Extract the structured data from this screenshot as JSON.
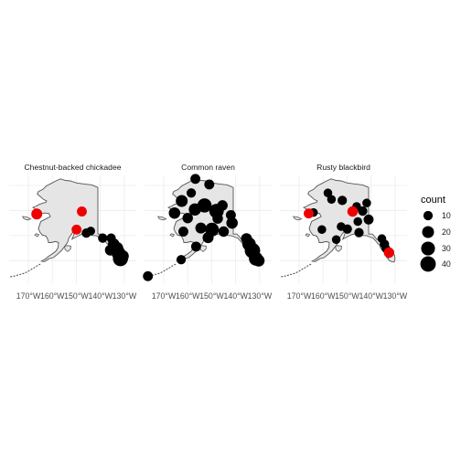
{
  "figure": {
    "facets": [
      {
        "title": "Chestnut-backed chickadee",
        "points": [
          {
            "lon": -166.5,
            "lat": 64.3,
            "count": 16,
            "highlight": true
          },
          {
            "lon": -147.7,
            "lat": 64.8,
            "count": 12,
            "highlight": true
          },
          {
            "lon": -149.9,
            "lat": 61.2,
            "count": 12,
            "highlight": true
          },
          {
            "lon": -135.5,
            "lat": 59.5,
            "count": 10,
            "highlight": false
          },
          {
            "lon": -134.4,
            "lat": 58.3,
            "count": 18,
            "highlight": false
          },
          {
            "lon": -133.0,
            "lat": 57.5,
            "count": 22,
            "highlight": false
          },
          {
            "lon": -132.4,
            "lat": 56.5,
            "count": 30,
            "highlight": false
          },
          {
            "lon": -131.6,
            "lat": 55.4,
            "count": 38,
            "highlight": false
          },
          {
            "lon": -130.6,
            "lat": 55.9,
            "count": 20,
            "highlight": false
          },
          {
            "lon": -135.8,
            "lat": 57.1,
            "count": 16,
            "highlight": false
          },
          {
            "lon": -139.0,
            "lat": 59.5,
            "count": 10,
            "highlight": false
          },
          {
            "lon": -145.8,
            "lat": 60.5,
            "count": 10,
            "highlight": false
          },
          {
            "lon": -144.0,
            "lat": 60.9,
            "count": 8,
            "highlight": false
          }
        ]
      },
      {
        "title": "Common raven",
        "points": [
          {
            "lon": -165.5,
            "lat": 64.5,
            "count": 18,
            "highlight": false
          },
          {
            "lon": -162.5,
            "lat": 66.9,
            "count": 20,
            "highlight": false
          },
          {
            "lon": -158.5,
            "lat": 68.5,
            "count": 10,
            "highlight": false
          },
          {
            "lon": -156.8,
            "lat": 71.3,
            "count": 12,
            "highlight": false
          },
          {
            "lon": -151.0,
            "lat": 70.2,
            "count": 12,
            "highlight": false
          },
          {
            "lon": -160.0,
            "lat": 63.5,
            "count": 14,
            "highlight": false
          },
          {
            "lon": -157.0,
            "lat": 65.2,
            "count": 22,
            "highlight": false
          },
          {
            "lon": -153.0,
            "lat": 66.0,
            "count": 32,
            "highlight": false
          },
          {
            "lon": -148.0,
            "lat": 64.9,
            "count": 34,
            "highlight": false
          },
          {
            "lon": -145.5,
            "lat": 66.0,
            "count": 14,
            "highlight": false
          },
          {
            "lon": -142.0,
            "lat": 64.1,
            "count": 12,
            "highlight": false
          },
          {
            "lon": -141.5,
            "lat": 62.5,
            "count": 18,
            "highlight": false
          },
          {
            "lon": -147.5,
            "lat": 63.4,
            "count": 14,
            "highlight": false
          },
          {
            "lon": -154.5,
            "lat": 61.5,
            "count": 16,
            "highlight": false
          },
          {
            "lon": -161.8,
            "lat": 60.8,
            "count": 12,
            "highlight": false
          },
          {
            "lon": -149.9,
            "lat": 61.2,
            "count": 30,
            "highlight": false
          },
          {
            "lon": -151.5,
            "lat": 59.6,
            "count": 16,
            "highlight": false
          },
          {
            "lon": -145.0,
            "lat": 60.8,
            "count": 14,
            "highlight": false
          },
          {
            "lon": -135.5,
            "lat": 59.4,
            "count": 16,
            "highlight": false
          },
          {
            "lon": -134.4,
            "lat": 58.3,
            "count": 28,
            "highlight": false
          },
          {
            "lon": -133.0,
            "lat": 57.0,
            "count": 40,
            "highlight": false
          },
          {
            "lon": -131.6,
            "lat": 55.4,
            "count": 30,
            "highlight": false
          },
          {
            "lon": -130.4,
            "lat": 55.0,
            "count": 20,
            "highlight": false
          },
          {
            "lon": -156.5,
            "lat": 57.8,
            "count": 12,
            "highlight": false
          },
          {
            "lon": -162.7,
            "lat": 55.2,
            "count": 10,
            "highlight": false
          },
          {
            "lon": -176.6,
            "lat": 51.9,
            "count": 12,
            "highlight": false
          }
        ]
      },
      {
        "title": "Rusty blackbird",
        "points": [
          {
            "lon": -166.0,
            "lat": 64.4,
            "count": 12,
            "highlight": true
          },
          {
            "lon": -164.0,
            "lat": 64.6,
            "count": 8,
            "highlight": false
          },
          {
            "lon": -158.0,
            "lat": 68.5,
            "count": 8,
            "highlight": false
          },
          {
            "lon": -156.5,
            "lat": 67.2,
            "count": 8,
            "highlight": false
          },
          {
            "lon": -152.0,
            "lat": 67.0,
            "count": 10,
            "highlight": false
          },
          {
            "lon": -147.7,
            "lat": 64.8,
            "count": 14,
            "highlight": true
          },
          {
            "lon": -146.0,
            "lat": 65.8,
            "count": 8,
            "highlight": false
          },
          {
            "lon": -143.5,
            "lat": 64.9,
            "count": 10,
            "highlight": false
          },
          {
            "lon": -141.8,
            "lat": 66.5,
            "count": 8,
            "highlight": false
          },
          {
            "lon": -141.0,
            "lat": 63.2,
            "count": 12,
            "highlight": false
          },
          {
            "lon": -145.5,
            "lat": 62.8,
            "count": 8,
            "highlight": false
          },
          {
            "lon": -149.9,
            "lat": 61.3,
            "count": 10,
            "highlight": false
          },
          {
            "lon": -152.5,
            "lat": 61.8,
            "count": 8,
            "highlight": false
          },
          {
            "lon": -160.5,
            "lat": 61.2,
            "count": 8,
            "highlight": false
          },
          {
            "lon": -154.5,
            "lat": 59.2,
            "count": 8,
            "highlight": false
          },
          {
            "lon": -145.0,
            "lat": 60.6,
            "count": 10,
            "highlight": false
          },
          {
            "lon": -135.5,
            "lat": 59.4,
            "count": 8,
            "highlight": false
          },
          {
            "lon": -134.4,
            "lat": 58.3,
            "count": 10,
            "highlight": false
          },
          {
            "lon": -132.5,
            "lat": 56.6,
            "count": 14,
            "highlight": true
          },
          {
            "lon": -133.8,
            "lat": 57.4,
            "count": 8,
            "highlight": false
          }
        ]
      }
    ],
    "x_ticks": [
      "170°W",
      "160°W",
      "150°W",
      "140°W",
      "130°W"
    ],
    "x_tick_values": [
      -170,
      -160,
      -150,
      -140,
      -130
    ],
    "legend": {
      "title": "count",
      "entries": [
        {
          "label": "10",
          "value": 10
        },
        {
          "label": "20",
          "value": 20
        },
        {
          "label": "30",
          "value": 30
        },
        {
          "label": "40",
          "value": 40
        }
      ]
    },
    "colors": {
      "land": "#e5e5e5",
      "coast": "#555555",
      "grid": "#ebebeb",
      "point": "#000000",
      "highlight": "#ee0000",
      "text": "#4d4d4d"
    }
  }
}
